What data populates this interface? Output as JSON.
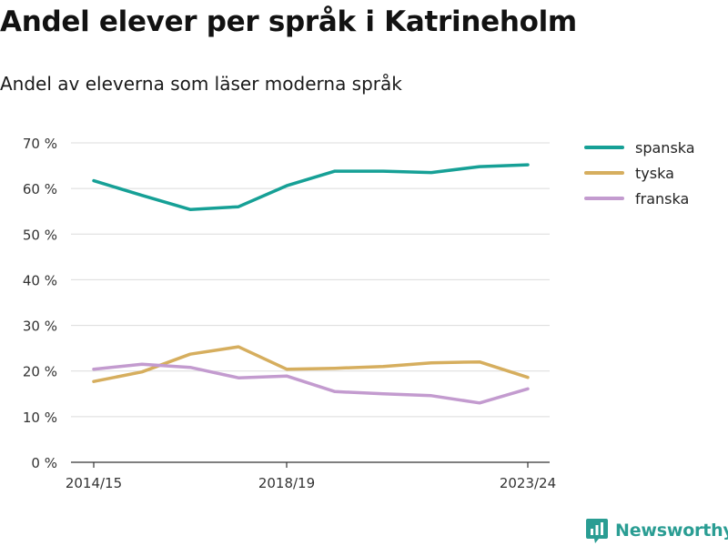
{
  "title": "Andel elever per språk i Katrineholm",
  "subtitle": "Andel av eleverna som läser moderna språk",
  "brand": {
    "name": "Newsworthy",
    "icon": "newsworthy-logo-icon",
    "color": "#2a9d93"
  },
  "chart_data": {
    "type": "line",
    "x_tick_labels": [
      "2014/15",
      "2018/19",
      "2023/24"
    ],
    "x_tick_positions": [
      0,
      4,
      9
    ],
    "ylim": [
      0,
      70
    ],
    "y_ticks": [
      0,
      10,
      20,
      30,
      40,
      50,
      60,
      70
    ],
    "y_tick_labels": [
      "0 %",
      "10 %",
      "20 %",
      "30 %",
      "40 %",
      "50 %",
      "60 %",
      "70 %"
    ],
    "grid": true,
    "legend_position": "right",
    "series": [
      {
        "name": "spanska",
        "color": "#16a096",
        "values": [
          61.7,
          58.5,
          55.4,
          56.0,
          60.6,
          63.8,
          63.8,
          63.5,
          64.8,
          65.2
        ]
      },
      {
        "name": "tyska",
        "color": "#d6ae5e",
        "values": [
          17.7,
          19.8,
          23.7,
          25.3,
          20.4,
          20.6,
          21.0,
          21.8,
          22.0,
          18.6
        ]
      },
      {
        "name": "franska",
        "color": "#c39bcf",
        "values": [
          20.4,
          21.5,
          20.8,
          18.5,
          18.9,
          15.5,
          15.0,
          14.6,
          13.0,
          16.1
        ]
      }
    ]
  }
}
